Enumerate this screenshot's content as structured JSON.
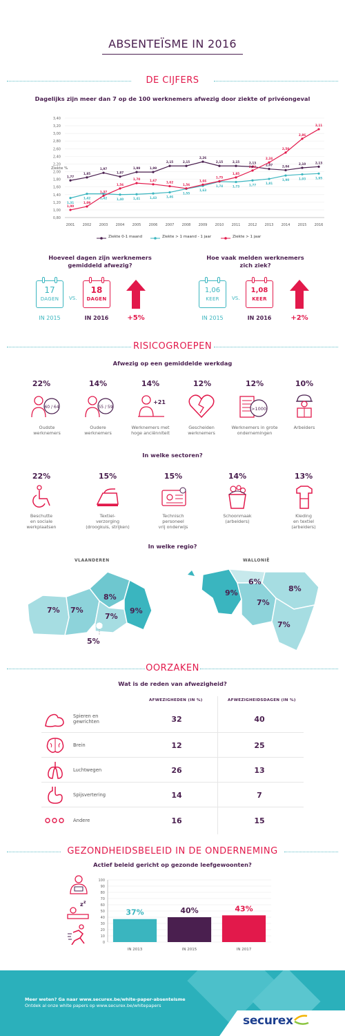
{
  "page_title": "ABSENTEÏSME IN 2016",
  "sections": {
    "cijfers": "DE CIJFERS",
    "risico": "RISICOGROEPEN",
    "oorzaken": "OORZAKEN",
    "beleid": "GEZONDHEIDSBELEID IN DE ONDERNEMING"
  },
  "chart1": {
    "subtitle": "Dagelijks zijn meer dan 7 op de 100 werknemers afwezig door ziekte of privéongeval",
    "ylabel": "Ziekte %",
    "chart_data": {
      "type": "line",
      "x": [
        "2001",
        "2002",
        "2003",
        "2004",
        "2005",
        "2006",
        "2007",
        "2008",
        "2009",
        "2010",
        "2011",
        "2012",
        "2013",
        "2014",
        "2015",
        "2016"
      ],
      "ylim": [
        0.8,
        3.4
      ],
      "yticks": [
        "0,80",
        "1,00",
        "1,20",
        "1,40",
        "1,60",
        "1,80",
        "2,00",
        "2,20",
        "2,40",
        "2,60",
        "2,80",
        "3,00",
        "3,20",
        "3,40"
      ],
      "series": [
        {
          "name": "Ziekte 0-1 maand",
          "color": "#4a1f4f",
          "values": [
            1.77,
            1.85,
            1.97,
            1.87,
            1.99,
            1.99,
            2.15,
            2.15,
            2.26,
            2.15,
            2.15,
            2.13,
            2.07,
            2.04,
            2.1,
            2.13
          ],
          "labels": [
            "1,77",
            "1,85",
            "1,97",
            "1,87",
            "1,99",
            "1,99",
            "2,15",
            "2,15",
            "2,26",
            "2,15",
            "2,15",
            "2,13",
            "2,07",
            "2,04",
            "2,10",
            "2,13"
          ]
        },
        {
          "name": "Ziekte > 1 maand - 1 jaar",
          "color": "#3ab5bf",
          "values": [
            1.31,
            1.42,
            1.42,
            1.4,
            1.41,
            1.43,
            1.46,
            1.55,
            1.63,
            1.74,
            1.73,
            1.77,
            1.81,
            1.9,
            1.93,
            1.95
          ],
          "labels": [
            "1,31",
            "1,42",
            "1,42",
            "1,40",
            "1,41",
            "1,43",
            "1,46",
            "1,55",
            "1,63",
            "1,74",
            "1,73",
            "1,77",
            "1,81",
            "1,90",
            "1,93",
            "1,95"
          ]
        },
        {
          "name": "Ziekte > 1 jaar",
          "color": "#e2194b",
          "values": [
            1.0,
            1.09,
            1.37,
            1.56,
            1.7,
            1.67,
            1.62,
            1.56,
            1.66,
            1.75,
            1.85,
            2.03,
            2.24,
            2.5,
            2.86,
            3.11
          ],
          "labels": [
            "1,00",
            "1,09",
            "1,37",
            "1,56",
            "1,70",
            "1,67",
            "1,62",
            "1,56",
            "1,66",
            "1,75",
            "1,85",
            "2,03",
            "2,24",
            "2,50",
            "2,86",
            "3,11"
          ]
        }
      ]
    }
  },
  "dagen": {
    "question_l1": "Hoeveel dagen zijn werknemers",
    "question_l2": "gemiddeld afwezig?",
    "val_2015": "17",
    "unit_2015": "DAGEN",
    "year_2015": "IN 2015",
    "val_2016": "18",
    "unit_2016": "DAGEN",
    "year_2016": "IN 2016",
    "vs": "VS.",
    "change": "+5%"
  },
  "keer": {
    "question_l1": "Hoe vaak melden werknemers",
    "question_l2": "zich ziek?",
    "val_2015": "1,06",
    "unit_2015": "KEER",
    "year_2015": "IN 2015",
    "val_2016": "1,08",
    "unit_2016": "KEER",
    "year_2016": "IN 2016",
    "vs": "VS.",
    "change": "+2%"
  },
  "werkdag": {
    "subtitle": "Afwezig op een gemiddelde werkdag",
    "items": [
      {
        "pct": "22%",
        "l1": "Oudste",
        "l2": "werknemers",
        "badge": "60 / 64"
      },
      {
        "pct": "14%",
        "l1": "Oudere",
        "l2": "werknemers",
        "badge": "55 / 59"
      },
      {
        "pct": "14%",
        "l1": "Werknemers met",
        "l2": "hoge anciënniteit",
        "badge": "+21"
      },
      {
        "pct": "12%",
        "l1": "Gescheiden",
        "l2": "werknemers"
      },
      {
        "pct": "12%",
        "l1": "Werknemers in grote",
        "l2": "ondernemingen",
        "badge": ">1000"
      },
      {
        "pct": "10%",
        "l1": "Arbeiders",
        "l2": ""
      }
    ]
  },
  "sectoren": {
    "subtitle": "In welke sectoren?",
    "items": [
      {
        "pct": "22%",
        "l1": "Beschutte",
        "l2": "en sociale",
        "l3": "werkplaatsen"
      },
      {
        "pct": "15%",
        "l1": "Textiel-",
        "l2": "verzorging",
        "l3": "(droogkuis, strijken)"
      },
      {
        "pct": "15%",
        "l1": "Technisch",
        "l2": "personeel",
        "l3": "vrij onderwijs"
      },
      {
        "pct": "14%",
        "l1": "Schoonmaak",
        "l2": "(arbeiders)",
        "l3": ""
      },
      {
        "pct": "13%",
        "l1": "Kleding",
        "l2": "en textiel",
        "l3": "(arbeiders)"
      }
    ]
  },
  "regio": {
    "subtitle": "In welke regio?",
    "vlaanderen": "VLAANDEREN",
    "wallonie": "WALLONIË",
    "vl_values": [
      "7%",
      "7%",
      "8%",
      "7%",
      "9%",
      "5%"
    ],
    "wa_values": [
      "9%",
      "6%",
      "8%",
      "7%",
      "7%"
    ]
  },
  "oorzaken": {
    "subtitle": "Wat is de reden van afwezigheid?",
    "col1": "AFWEZIGHEDEN (IN %)",
    "col2": "AFWEZIGHEIDSDAGEN (IN %)",
    "rows": [
      {
        "l1": "Spieren en",
        "l2": "gewrichten",
        "a": "32",
        "b": "40"
      },
      {
        "l1": "Brein",
        "l2": "",
        "a": "12",
        "b": "25"
      },
      {
        "l1": "Luchtwegen",
        "l2": "",
        "a": "26",
        "b": "13"
      },
      {
        "l1": "Spijsvertering",
        "l2": "",
        "a": "14",
        "b": "7"
      },
      {
        "l1": "Andere",
        "l2": "",
        "a": "16",
        "b": "15"
      }
    ]
  },
  "beleid": {
    "subtitle": "Actief beleid gericht op gezonde leefgewoonten?",
    "chart_data": {
      "type": "bar",
      "categories": [
        "IN 2013",
        "IN 2015",
        "IN 2017"
      ],
      "values": [
        37,
        40,
        43
      ],
      "labels": [
        "37%",
        "40%",
        "43%"
      ],
      "colors": [
        "#3ab5bf",
        "#4a1f4f",
        "#e2194b"
      ],
      "ylim": [
        0,
        100
      ],
      "yticks": [
        "0",
        "10",
        "20",
        "30",
        "40",
        "50",
        "60",
        "70",
        "80",
        "90",
        "100"
      ]
    }
  },
  "footer": {
    "line1": "Meer weten? Ga naar www.securex.be/white-paper-absenteisme",
    "line2": "Ontdek al onze white papers op www.securex.be/whitepapers",
    "logo": "securex"
  }
}
